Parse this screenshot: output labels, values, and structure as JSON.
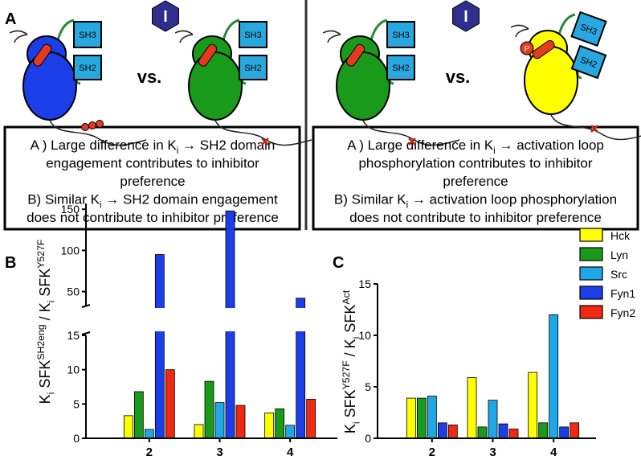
{
  "panel_labels": [
    "A",
    "B",
    "C"
  ],
  "panel_a": {
    "left": {
      "inhibitor": "I",
      "vs": "vs.",
      "kinase1": {
        "sh3": "SH3",
        "sh2": "SH2"
      },
      "kinase2": {
        "sh3": "SH3",
        "sh2": "SH2"
      },
      "box": [
        [
          {
            "text": "A ) Large difference in K"
          },
          {
            "sub": "i"
          },
          {
            "text": " → SH2 domain"
          }
        ],
        [
          {
            "text": "engagement contributes to inhibitor"
          }
        ],
        [
          {
            "text": "preference"
          }
        ],
        [
          {
            "text": "B) Similar K"
          },
          {
            "sub": "i"
          },
          {
            "text": " → SH2 domain engagement"
          }
        ],
        [
          {
            "text": "does not contribute to inhibitor preference"
          }
        ]
      ]
    },
    "right": {
      "inhibitor": "I",
      "vs": "vs.",
      "kinase1": {
        "sh3": "SH3",
        "sh2": "SH2"
      },
      "kinase2": {
        "sh3": "SH3",
        "sh2": "SH2",
        "phospho": "P"
      },
      "box": [
        [
          {
            "text": "A ) Large difference in K"
          },
          {
            "sub": "i"
          },
          {
            "text": " → activation loop"
          }
        ],
        [
          {
            "text": "phosphorylation contributes to inhibitor"
          }
        ],
        [
          {
            "text": "preference"
          }
        ],
        [
          {
            "text": "B) Similar K"
          },
          {
            "sub": "i"
          },
          {
            "text": " → activation loop phosphorylation"
          }
        ],
        [
          {
            "text": "does not contribute to inhibitor preference"
          }
        ]
      ]
    }
  },
  "chart_data": [
    {
      "type": "bar",
      "categories": [
        "2",
        "3",
        "4"
      ],
      "ylabel": [
        {
          "text": "K"
        },
        {
          "sub": "i"
        },
        {
          "text": " SFK"
        },
        {
          "sup": "SH2eng"
        },
        {
          "text": " / K"
        },
        {
          "sub": "i"
        },
        {
          "text": " SFK"
        },
        {
          "sup": "Y527F"
        }
      ],
      "ylim": [
        0,
        15
      ],
      "yticks": [
        0,
        5,
        10,
        15
      ],
      "upper_ylim": [
        33,
        157
      ],
      "upper_yticks": [
        50,
        100,
        150
      ],
      "series": [
        {
          "color": "#ffff00",
          "values": [
            3.3,
            2.0,
            3.7
          ]
        },
        {
          "color": "#1a9a1a",
          "values": [
            6.8,
            8.3,
            4.3
          ]
        },
        {
          "color": "#1fa8e8",
          "values": [
            1.3,
            5.2,
            1.9
          ]
        },
        {
          "color": "#1c3ee8",
          "values": [
            95,
            148,
            42
          ]
        },
        {
          "color": "#f02a10",
          "values": [
            10,
            4.8,
            5.7
          ]
        }
      ]
    },
    {
      "type": "bar",
      "categories": [
        "2",
        "3",
        "4"
      ],
      "ylabel": [
        {
          "text": "K"
        },
        {
          "sub": "i"
        },
        {
          "text": " SFK"
        },
        {
          "sup": "Y527F"
        },
        {
          "text": " / K"
        },
        {
          "sub": "i"
        },
        {
          "text": " SFK"
        },
        {
          "sup": "Act"
        }
      ],
      "ylim": [
        0,
        15
      ],
      "yticks": [
        0,
        5,
        10,
        15
      ],
      "series": [
        {
          "name": "Hck",
          "color": "#ffff00",
          "values": [
            3.9,
            5.9,
            6.4
          ]
        },
        {
          "name": "Lyn",
          "color": "#1a9a1a",
          "values": [
            3.9,
            1.1,
            1.5
          ]
        },
        {
          "name": "Src",
          "color": "#1fa8e8",
          "values": [
            4.1,
            3.7,
            12.0
          ]
        },
        {
          "name": "Fyn1",
          "color": "#1c3ee8",
          "values": [
            1.5,
            1.4,
            1.1
          ]
        },
        {
          "name": "Fyn2",
          "color": "#f02a10",
          "values": [
            1.3,
            0.9,
            1.5
          ]
        }
      ]
    }
  ]
}
